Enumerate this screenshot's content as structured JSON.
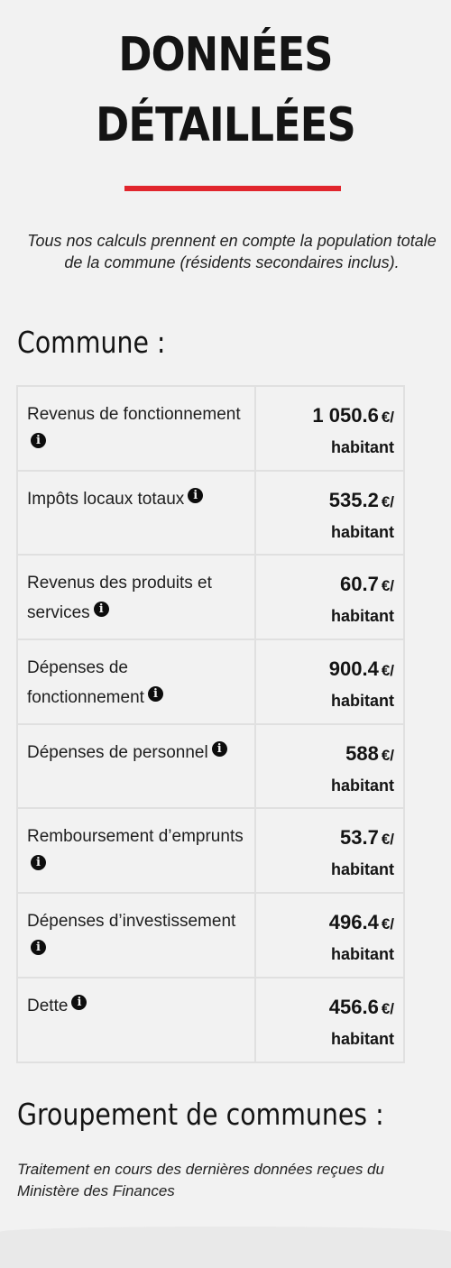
{
  "title": {
    "line1": "DONNÉES",
    "line2": "DÉTAILLÉES"
  },
  "accent_color": "#e1262d",
  "intro": "Tous nos calculs prennent en compte la population totale de la commune (résidents secondaires inclus).",
  "commune": {
    "heading": "Commune :",
    "unit_currency": "€/",
    "unit_per": "habitant",
    "info_icon": "info-circle-icon",
    "rows": [
      {
        "label": "Revenus de fonctionnement",
        "value": "1 050.6"
      },
      {
        "label": "Impôts locaux totaux",
        "value": "535.2"
      },
      {
        "label": "Revenus des produits et services",
        "value": "60.7"
      },
      {
        "label": "Dépenses de fonctionnement",
        "value": "900.4"
      },
      {
        "label": "Dépenses de personnel",
        "value": "588"
      },
      {
        "label": "Remboursement d’emprunts",
        "value": "53.7"
      },
      {
        "label": "Dépenses d’investissement",
        "value": "496.4"
      },
      {
        "label": "Dette",
        "value": "456.6"
      }
    ]
  },
  "groupement": {
    "heading": "Groupement de communes :",
    "note": "Traitement en cours des dernières données reçues du Ministère des Finances"
  }
}
